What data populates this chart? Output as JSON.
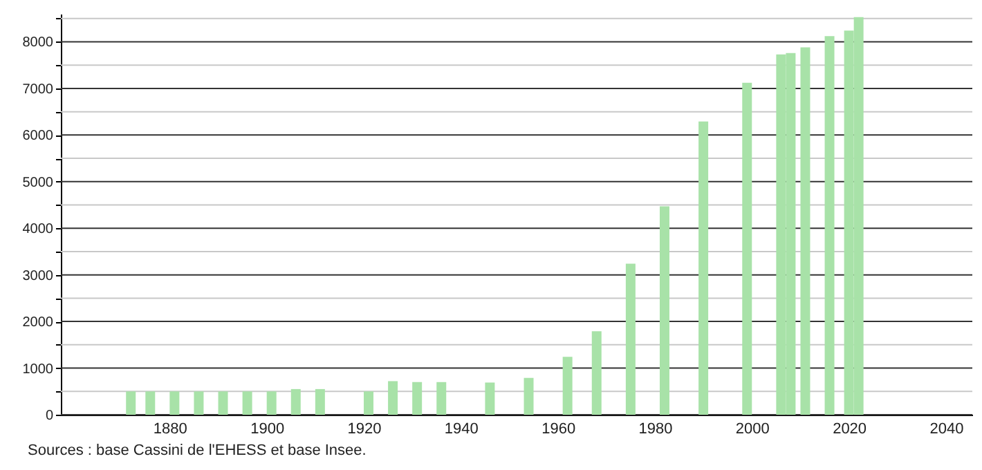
{
  "chart_data": {
    "type": "bar",
    "x": [
      1872,
      1876,
      1881,
      1886,
      1891,
      1896,
      1901,
      1906,
      1911,
      1921,
      1926,
      1931,
      1936,
      1946,
      1954,
      1962,
      1968,
      1975,
      1982,
      1990,
      1999,
      2006,
      2008,
      2011,
      2016,
      2020,
      2022
    ],
    "values": [
      500,
      500,
      500,
      500,
      500,
      500,
      500,
      550,
      550,
      500,
      720,
      700,
      700,
      690,
      790,
      1240,
      1790,
      3240,
      4470,
      6290,
      7120,
      7730,
      7760,
      7880,
      8120,
      8240,
      8530
    ],
    "color": "#a8e2a8",
    "xlim": [
      1859,
      2044
    ],
    "xticks": [
      1880,
      1900,
      1920,
      1940,
      1960,
      1980,
      2000,
      2020,
      2040
    ],
    "ylim": [
      0,
      8600
    ],
    "yticks": [
      0,
      {
        "value": 500,
        "label": null
      },
      1000,
      {
        "value": 1500,
        "label": null
      },
      2000,
      {
        "value": 2500,
        "label": null
      },
      3000,
      {
        "value": 3500,
        "label": null
      },
      4000,
      {
        "value": 4500,
        "label": null
      },
      5000,
      {
        "value": 5500,
        "label": null
      },
      6000,
      {
        "value": 6500,
        "label": null
      },
      7000,
      {
        "value": 7500,
        "label": null
      },
      8000,
      {
        "value": 8500,
        "label": null
      }
    ],
    "grid": "y",
    "annotations": [
      "Sources : base Cassini de l'EHESS et base Insee."
    ]
  }
}
